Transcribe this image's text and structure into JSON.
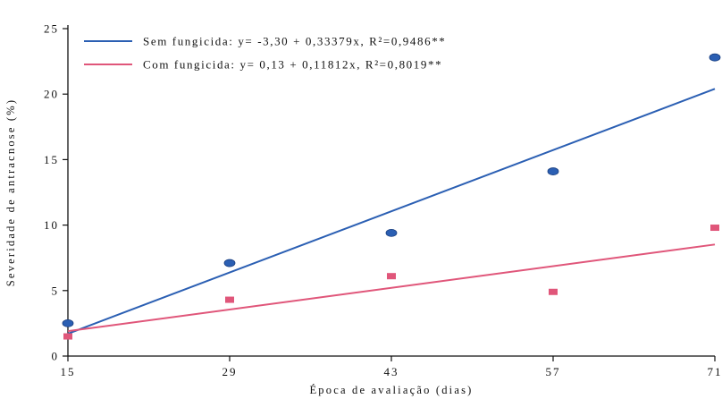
{
  "chart_data": {
    "type": "scatter",
    "xlabel": "Época de avaliação (dias)",
    "ylabel": "Severidade de antracnose (%)",
    "xlim": [
      15,
      71
    ],
    "ylim": [
      0,
      25
    ],
    "xticks": [
      15,
      29,
      43,
      57,
      71
    ],
    "yticks": [
      0,
      5,
      10,
      15,
      20,
      25
    ],
    "grid": false,
    "legend_position": "top-left",
    "series": [
      {
        "name": "Sem fungicida",
        "legend_text": "Sem fungicida: y= -3,30 + 0,33379x, R²=0,9486**",
        "color": "#2b5fb3",
        "marker": "ellipse",
        "x": [
          15,
          29,
          43,
          57,
          71
        ],
        "y": [
          2.5,
          7.1,
          9.4,
          14.1,
          22.8
        ],
        "fit": {
          "intercept": -3.3,
          "slope": 0.33379
        }
      },
      {
        "name": "Com fungicida",
        "legend_text": "Com fungicida: y= 0,13 + 0,11812x, R²=0,8019**",
        "color": "#e0567a",
        "marker": "square",
        "x": [
          15,
          29,
          43,
          57,
          71
        ],
        "y": [
          1.5,
          4.3,
          6.1,
          4.9,
          9.8
        ],
        "fit": {
          "intercept": 0.13,
          "slope": 0.11812
        }
      }
    ]
  }
}
